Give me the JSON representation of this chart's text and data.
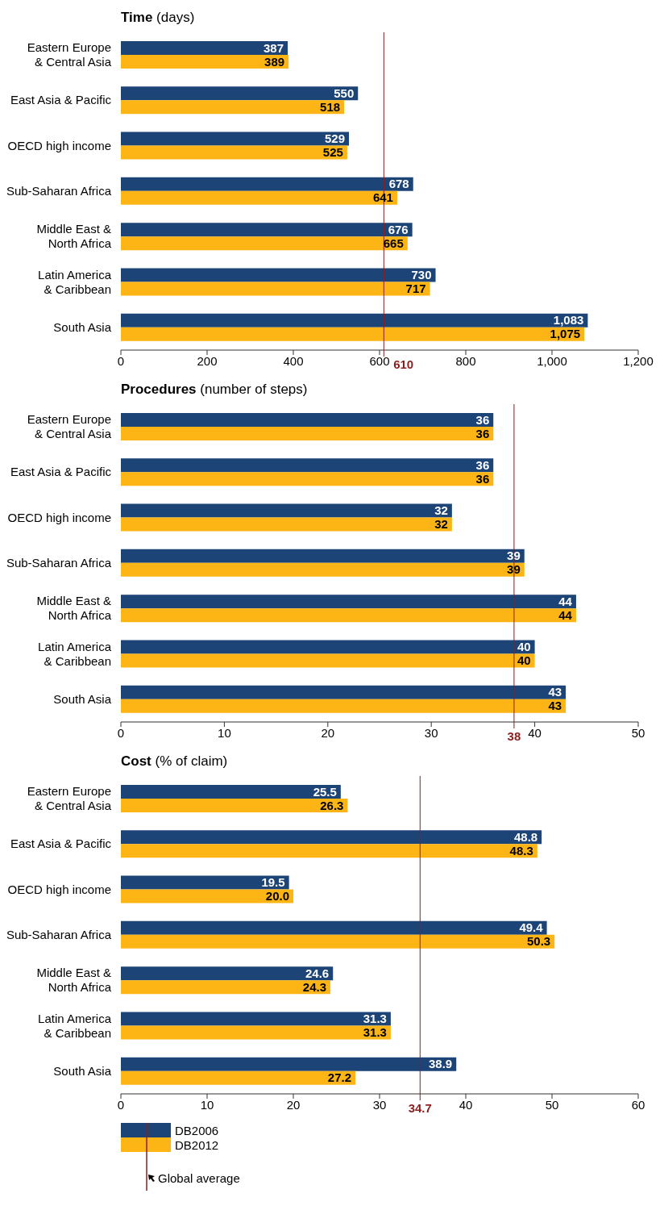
{
  "chart_data": [
    {
      "type": "bar",
      "orientation": "horizontal",
      "title": "Time (days)",
      "categories": [
        "Eastern Europe & Central Asia",
        "East Asia & Pacific",
        "OECD high income",
        "Sub-Saharan Africa",
        "Middle East & North Africa",
        "Latin America & Caribbean",
        "South Asia"
      ],
      "series": [
        {
          "color": "#1d4477",
          "values": [
            387,
            550,
            529,
            678,
            676,
            730,
            1083
          ],
          "value_labels": [
            "387",
            "550",
            "529",
            "678",
            "676",
            "730",
            "1,083"
          ]
        },
        {
          "color": "#fdb515",
          "values": [
            389,
            518,
            525,
            641,
            665,
            717,
            1075
          ],
          "value_labels": [
            "389",
            "518",
            "525",
            "641",
            "665",
            "717",
            "1,075"
          ]
        }
      ],
      "xlim": [
        0,
        1200
      ],
      "xticks": [
        0,
        200,
        400,
        600,
        800,
        {
          "value": 1000,
          "label": "1,000"
        },
        {
          "value": 1200,
          "label": "1,200"
        }
      ],
      "ref_lines": [
        {
          "axis": "x",
          "value": 610,
          "label": "610",
          "color": "#8b1e1e"
        }
      ],
      "grid": false,
      "legend": false
    },
    {
      "type": "bar",
      "orientation": "horizontal",
      "title": "Procedures (number of steps)",
      "categories": [
        "Eastern Europe & Central Asia",
        "East Asia & Pacific",
        "OECD high income",
        "Sub-Saharan Africa",
        "Middle East & North Africa",
        "Latin America & Caribbean",
        "South Asia"
      ],
      "series": [
        {
          "color": "#1d4477",
          "values": [
            36,
            36,
            32,
            39,
            44,
            40,
            43
          ],
          "value_labels": [
            "36",
            "36",
            "32",
            "39",
            "44",
            "40",
            "43"
          ]
        },
        {
          "color": "#fdb515",
          "values": [
            36,
            36,
            32,
            39,
            44,
            40,
            43
          ],
          "value_labels": [
            "36",
            "36",
            "32",
            "39",
            "44",
            "40",
            "43"
          ]
        }
      ],
      "xlim": [
        0,
        50
      ],
      "xticks": [
        0,
        10,
        20,
        30,
        40,
        50
      ],
      "ref_lines": [
        {
          "axis": "x",
          "value": 38,
          "label": "38",
          "color": "#8b1e1e"
        }
      ],
      "grid": false,
      "legend": false
    },
    {
      "type": "bar",
      "orientation": "horizontal",
      "title": "Cost (% of claim)",
      "categories": [
        "Eastern Europe & Central Asia",
        "East Asia & Pacific",
        "OECD high income",
        "Sub-Saharan Africa",
        "Middle East & North Africa",
        "Latin America & Caribbean",
        "South Asia"
      ],
      "series": [
        {
          "name": "DB2006",
          "color": "#1d4477",
          "values": [
            25.5,
            48.8,
            19.5,
            49.4,
            24.6,
            31.3,
            38.9
          ],
          "value_labels": [
            "25.5",
            "48.8",
            "19.5",
            "49.4",
            "24.6",
            "31.3",
            "38.9"
          ]
        },
        {
          "name": "DB2012",
          "color": "#fdb515",
          "values": [
            26.3,
            48.3,
            20.0,
            50.3,
            24.3,
            31.3,
            27.2
          ],
          "value_labels": [
            "26.3",
            "48.3",
            "20.0",
            "50.3",
            "24.3",
            "31.3",
            "27.2"
          ]
        }
      ],
      "xlim": [
        0,
        60
      ],
      "xticks": [
        0,
        10,
        20,
        30,
        40,
        50,
        60
      ],
      "ref_lines": [
        {
          "axis": "x",
          "value": 34.7,
          "label": "34.7",
          "color": "#8b1e1e"
        }
      ],
      "grid": false,
      "legend": "bottom",
      "annotations": [
        "Global average"
      ]
    }
  ]
}
